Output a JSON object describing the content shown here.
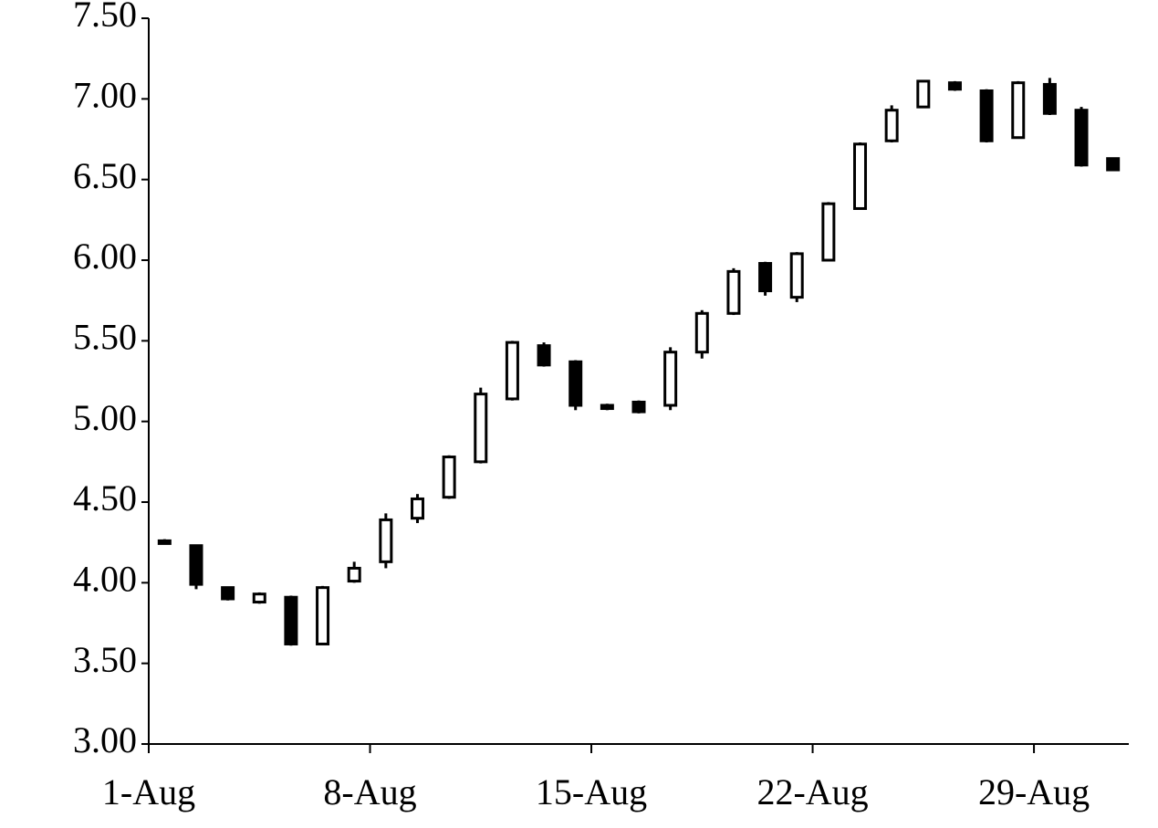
{
  "chart_data": {
    "type": "candlestick",
    "categories": [
      "1-Aug",
      null,
      null,
      null,
      null,
      null,
      null,
      "8-Aug",
      null,
      null,
      null,
      null,
      null,
      null,
      "15-Aug",
      null,
      null,
      null,
      null,
      null,
      null,
      "22-Aug",
      null,
      null,
      null,
      null,
      null,
      null,
      "29-Aug",
      null,
      null
    ],
    "open": [
      4.26,
      4.23,
      3.97,
      3.88,
      3.91,
      3.62,
      4.01,
      4.13,
      4.4,
      4.53,
      4.75,
      5.14,
      5.47,
      5.37,
      5.1,
      5.12,
      5.1,
      5.43,
      5.67,
      5.98,
      5.77,
      6.0,
      6.32,
      6.74,
      6.95,
      7.1,
      7.05,
      6.76,
      7.09,
      6.93,
      6.63
    ],
    "high": [
      4.27,
      4.23,
      3.97,
      3.94,
      3.92,
      3.98,
      4.13,
      4.43,
      4.55,
      4.79,
      5.21,
      5.5,
      5.49,
      5.38,
      5.11,
      5.13,
      5.46,
      5.69,
      5.95,
      5.99,
      6.05,
      6.36,
      6.73,
      6.96,
      7.11,
      7.11,
      7.06,
      7.11,
      7.13,
      6.95,
      6.63
    ],
    "low": [
      4.24,
      3.96,
      3.89,
      3.87,
      3.61,
      3.62,
      4.0,
      4.09,
      4.37,
      4.52,
      4.74,
      5.13,
      5.34,
      5.07,
      5.07,
      5.05,
      5.07,
      5.39,
      5.66,
      5.78,
      5.74,
      6.0,
      6.32,
      6.73,
      6.95,
      7.05,
      6.73,
      6.76,
      6.9,
      6.58,
      6.56
    ],
    "close": [
      4.25,
      3.99,
      3.9,
      3.93,
      3.62,
      3.97,
      4.09,
      4.39,
      4.52,
      4.78,
      5.17,
      5.49,
      5.35,
      5.1,
      5.08,
      5.06,
      5.43,
      5.67,
      5.93,
      5.81,
      6.04,
      6.35,
      6.72,
      6.93,
      7.11,
      7.06,
      6.74,
      7.1,
      6.91,
      6.59,
      6.56
    ],
    "up_color": "#ffffff",
    "down_color": "#000000",
    "line_color": "#000000",
    "ylim": [
      3,
      7.5
    ],
    "yticks": [
      {
        "value": 3,
        "label": "3.00"
      },
      {
        "value": 3.5,
        "label": "3.50"
      },
      {
        "value": 4,
        "label": "4.00"
      },
      {
        "value": 4.5,
        "label": "4.50"
      },
      {
        "value": 5,
        "label": "5.00"
      },
      {
        "value": 5.5,
        "label": "5.50"
      },
      {
        "value": 6,
        "label": "6.00"
      },
      {
        "value": 6.5,
        "label": "6.50"
      },
      {
        "value": 7,
        "label": "7.00"
      },
      {
        "value": 7.5,
        "label": "7.50"
      }
    ]
  }
}
